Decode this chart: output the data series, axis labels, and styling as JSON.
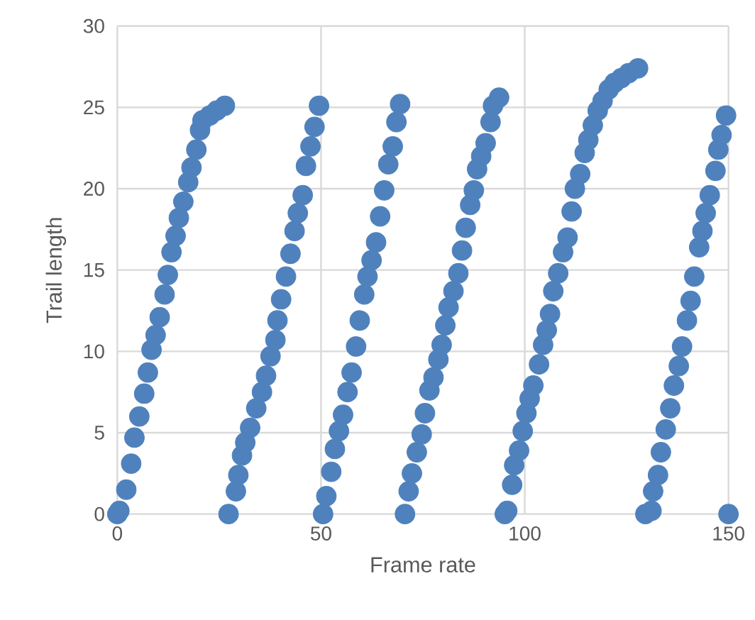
{
  "chart_data": {
    "type": "scatter",
    "xlabel": "Frame rate",
    "ylabel": "Trail length",
    "xlim": [
      0,
      150
    ],
    "ylim": [
      0,
      30
    ],
    "xticks": [
      0,
      50,
      100,
      150
    ],
    "yticks": [
      0,
      5,
      10,
      15,
      20,
      25,
      30
    ],
    "grid": true,
    "marker": "circle",
    "series": [
      {
        "color": "#4f81bd",
        "x": [
          0,
          0.5,
          2.2,
          3.4,
          4.2,
          5.4,
          6.6,
          7.5,
          8.4,
          9.4,
          10.4,
          11.6,
          12.4,
          13.3,
          14.3,
          15.1,
          16.2,
          17.4,
          18.2,
          19.4,
          20.3,
          20.9,
          22.7,
          24.4,
          26.4,
          27.3,
          29.1,
          29.7,
          30.6,
          31.4,
          32.6,
          34.1,
          35.5,
          36.5,
          37.6,
          38.8,
          39.3,
          40.2,
          41.4,
          42.5,
          43.5,
          44.3,
          45.5,
          46.3,
          47.4,
          48.4,
          49.5,
          50.5,
          51.3,
          52.5,
          53.4,
          54.4,
          55.4,
          56.5,
          57.5,
          58.6,
          59.5,
          60.6,
          61.4,
          62.4,
          63.5,
          64.5,
          65.5,
          66.5,
          67.6,
          68.5,
          69.4,
          70.6,
          71.5,
          72.3,
          73.5,
          74.7,
          75.5,
          76.6,
          77.6,
          78.8,
          79.6,
          80.5,
          81.3,
          82.5,
          83.7,
          84.6,
          85.5,
          86.6,
          87.5,
          88.3,
          89.3,
          90.4,
          91.6,
          92.2,
          93.7,
          95.1,
          95.7,
          96.9,
          97.4,
          98.6,
          99.5,
          100.4,
          101.2,
          102.1,
          103.5,
          104.5,
          105.4,
          106.2,
          107.0,
          108.2,
          109.4,
          110.5,
          111.5,
          112.3,
          113.6,
          114.7,
          115.6,
          116.7,
          117.9,
          119.1,
          120.6,
          122.0,
          123.7,
          125.5,
          127.8,
          129.6,
          131.1,
          131.5,
          132.7,
          133.4,
          134.6,
          135.7,
          136.6,
          137.8,
          138.6,
          139.8,
          140.7,
          141.6,
          142.8,
          143.6,
          144.4,
          145.4,
          146.8,
          147.5,
          148.3,
          149.4,
          150
        ],
        "values": [
          0,
          0.2,
          1.5,
          3.1,
          4.7,
          6.0,
          7.4,
          8.7,
          10.1,
          11.0,
          12.1,
          13.5,
          14.7,
          16.1,
          17.1,
          18.2,
          19.2,
          20.4,
          21.3,
          22.4,
          23.6,
          24.2,
          24.5,
          24.8,
          25.1,
          0,
          1.4,
          2.4,
          3.6,
          4.4,
          5.3,
          6.5,
          7.5,
          8.5,
          9.7,
          10.7,
          11.9,
          13.2,
          14.6,
          16.0,
          17.4,
          18.5,
          19.6,
          21.4,
          22.6,
          23.8,
          25.1,
          0,
          1.1,
          2.6,
          4.0,
          5.1,
          6.1,
          7.5,
          8.7,
          10.3,
          11.9,
          13.5,
          14.6,
          15.6,
          16.7,
          18.3,
          19.9,
          21.5,
          22.6,
          24.1,
          25.2,
          0,
          1.4,
          2.5,
          3.8,
          4.9,
          6.2,
          7.6,
          8.4,
          9.5,
          10.4,
          11.6,
          12.7,
          13.7,
          14.8,
          16.2,
          17.6,
          19.0,
          19.9,
          21.2,
          22.0,
          22.8,
          24.1,
          25.1,
          25.6,
          0,
          0.2,
          1.8,
          3.0,
          3.9,
          5.1,
          6.2,
          7.1,
          7.9,
          9.2,
          10.4,
          11.3,
          12.3,
          13.7,
          14.8,
          16.1,
          17.0,
          18.6,
          20.0,
          20.9,
          22.2,
          23.0,
          23.9,
          24.8,
          25.4,
          26.1,
          26.5,
          26.8,
          27.1,
          27.4,
          0,
          0.2,
          1.4,
          2.4,
          3.8,
          5.2,
          6.5,
          7.9,
          9.1,
          10.3,
          11.9,
          13.1,
          14.6,
          16.4,
          17.4,
          18.5,
          19.6,
          21.1,
          22.4,
          23.3,
          24.5,
          0
        ]
      }
    ]
  }
}
